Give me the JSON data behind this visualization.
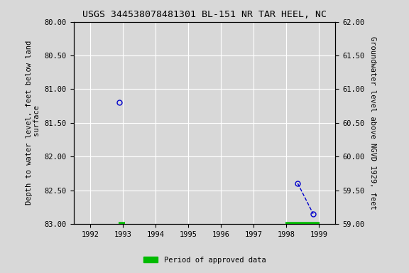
{
  "title": "USGS 344538078481301 BL-151 NR TAR HEEL, NC",
  "left_ylabel": "Depth to water level, feet below land\n surface",
  "right_ylabel": "Groundwater level above NGVD 1929, feet",
  "xlim": [
    1991.5,
    1999.5
  ],
  "ylim_left_top": 80.0,
  "ylim_left_bottom": 83.0,
  "ylim_right_top": 62.0,
  "ylim_right_bottom": 59.0,
  "xticks": [
    1992,
    1993,
    1994,
    1995,
    1996,
    1997,
    1998,
    1999
  ],
  "yticks_left": [
    80.0,
    80.5,
    81.0,
    81.5,
    82.0,
    82.5,
    83.0
  ],
  "yticks_right": [
    62.0,
    61.5,
    61.0,
    60.5,
    60.0,
    59.5,
    59.0
  ],
  "data_points_x": [
    1992.9,
    1998.35,
    1998.82
  ],
  "data_points_y": [
    81.2,
    82.4,
    82.85
  ],
  "green_segments": [
    {
      "x_start": 1992.88,
      "x_end": 1993.08,
      "y": 83.0
    },
    {
      "x_start": 1997.97,
      "x_end": 1999.02,
      "y": 83.0
    }
  ],
  "legend_label": "Period of approved data",
  "legend_color": "#00bb00",
  "point_color": "#0000cc",
  "line_color": "#0000cc",
  "background_color": "#d8d8d8",
  "plot_bg_color": "#d8d8d8",
  "grid_color": "#ffffff",
  "title_fontsize": 9.5,
  "axis_label_fontsize": 7.5,
  "tick_fontsize": 7.5
}
